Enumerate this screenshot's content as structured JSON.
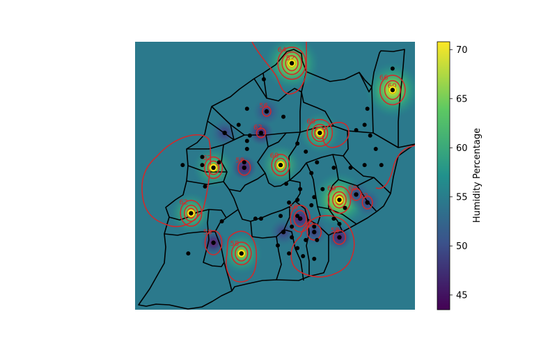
{
  "colorbar": {
    "label": "Humidity Percentage",
    "min": 43.5,
    "max": 70.8,
    "ticks": [
      "45",
      "50",
      "55",
      "60",
      "65",
      "70"
    ],
    "colormap": [
      "#440154",
      "#3b528b",
      "#21918c",
      "#5ec962",
      "#fde725"
    ]
  },
  "map": {
    "background_value": 54.5,
    "contour_color": "#d62728",
    "contour_labels": [
      "64",
      "66",
      "60",
      "62",
      "60",
      "62",
      "60",
      "58",
      "58",
      "62",
      "60",
      "62",
      "58",
      "56",
      "52",
      "58",
      "56",
      "52",
      "60",
      "62",
      "58"
    ],
    "stations": [
      {
        "lon": 0.56,
        "lat": 0.92,
        "value": 70.0
      },
      {
        "lon": 0.92,
        "lat": 0.82,
        "value": 66.0
      },
      {
        "lon": 0.66,
        "lat": 0.66,
        "value": 63.0
      },
      {
        "lon": 0.28,
        "lat": 0.53,
        "value": 61.0
      },
      {
        "lon": 0.52,
        "lat": 0.54,
        "value": 60.0
      },
      {
        "lon": 0.2,
        "lat": 0.36,
        "value": 64.0
      },
      {
        "lon": 0.73,
        "lat": 0.41,
        "value": 66.0
      },
      {
        "lon": 0.38,
        "lat": 0.21,
        "value": 62.0
      },
      {
        "lon": 0.45,
        "lat": 0.66,
        "value": 51.0
      },
      {
        "lon": 0.39,
        "lat": 0.53,
        "value": 51.5
      },
      {
        "lon": 0.59,
        "lat": 0.34,
        "value": 48.5
      },
      {
        "lon": 0.28,
        "lat": 0.25,
        "value": 50.5
      },
      {
        "lon": 0.79,
        "lat": 0.43,
        "value": 52.0
      },
      {
        "lon": 0.83,
        "lat": 0.4,
        "value": 52.5
      },
      {
        "lon": 0.73,
        "lat": 0.27,
        "value": 51.5
      },
      {
        "lon": 0.64,
        "lat": 0.29,
        "value": 53.0
      },
      {
        "lon": 0.47,
        "lat": 0.74,
        "value": 52.5
      },
      {
        "lon": 0.53,
        "lat": 0.29,
        "value": 53.0
      },
      {
        "lon": 0.32,
        "lat": 0.66,
        "value": 54.0
      }
    ],
    "points": [
      [
        0.92,
        0.9
      ],
      [
        0.46,
        0.86
      ],
      [
        0.4,
        0.75
      ],
      [
        0.53,
        0.72
      ],
      [
        0.37,
        0.69
      ],
      [
        0.41,
        0.65
      ],
      [
        0.4,
        0.6
      ],
      [
        0.24,
        0.57
      ],
      [
        0.24,
        0.54
      ],
      [
        0.39,
        0.55
      ],
      [
        0.25,
        0.46
      ],
      [
        0.17,
        0.54
      ],
      [
        0.3,
        0.55
      ],
      [
        0.4,
        0.63
      ],
      [
        0.58,
        0.62
      ],
      [
        0.61,
        0.59
      ],
      [
        0.65,
        0.55
      ],
      [
        0.63,
        0.51
      ],
      [
        0.71,
        0.53
      ],
      [
        0.83,
        0.75
      ],
      [
        0.82,
        0.69
      ],
      [
        0.79,
        0.67
      ],
      [
        0.84,
        0.65
      ],
      [
        0.86,
        0.6
      ],
      [
        0.77,
        0.53
      ],
      [
        0.82,
        0.54
      ],
      [
        0.88,
        0.54
      ],
      [
        0.54,
        0.47
      ],
      [
        0.59,
        0.45
      ],
      [
        0.67,
        0.45
      ],
      [
        0.63,
        0.39
      ],
      [
        0.58,
        0.41
      ],
      [
        0.58,
        0.35
      ],
      [
        0.64,
        0.42
      ],
      [
        0.75,
        0.38
      ],
      [
        0.71,
        0.34
      ],
      [
        0.73,
        0.32
      ],
      [
        0.64,
        0.31
      ],
      [
        0.65,
        0.26
      ],
      [
        0.61,
        0.26
      ],
      [
        0.58,
        0.23
      ],
      [
        0.55,
        0.21
      ],
      [
        0.43,
        0.34
      ],
      [
        0.45,
        0.34
      ],
      [
        0.56,
        0.27
      ],
      [
        0.51,
        0.24
      ],
      [
        0.64,
        0.19
      ],
      [
        0.6,
        0.2
      ],
      [
        0.31,
        0.33
      ],
      [
        0.19,
        0.21
      ],
      [
        0.52,
        0.35
      ],
      [
        0.55,
        0.4
      ],
      [
        0.56,
        0.31
      ]
    ],
    "hotspot_contours": [
      {
        "lon": 0.56,
        "lat": 0.92,
        "rings": [
          [
            0.05,
            0.06
          ],
          [
            0.035,
            0.042
          ],
          [
            0.022,
            0.028
          ]
        ]
      },
      {
        "lon": 0.92,
        "lat": 0.82,
        "rings": [
          [
            0.045,
            0.055
          ],
          [
            0.028,
            0.035
          ]
        ]
      },
      {
        "lon": 0.66,
        "lat": 0.66,
        "rings": [
          [
            0.045,
            0.05
          ],
          [
            0.028,
            0.032
          ],
          [
            0.018,
            0.022
          ]
        ]
      },
      {
        "lon": 0.28,
        "lat": 0.53,
        "rings": [
          [
            0.032,
            0.04
          ],
          [
            0.02,
            0.025
          ]
        ]
      },
      {
        "lon": 0.52,
        "lat": 0.54,
        "rings": [
          [
            0.032,
            0.04
          ],
          [
            0.02,
            0.025
          ]
        ]
      },
      {
        "lon": 0.2,
        "lat": 0.36,
        "rings": [
          [
            0.038,
            0.048
          ],
          [
            0.024,
            0.03
          ],
          [
            0.014,
            0.018
          ]
        ]
      },
      {
        "lon": 0.73,
        "lat": 0.41,
        "rings": [
          [
            0.04,
            0.05
          ],
          [
            0.024,
            0.03
          ],
          [
            0.014,
            0.018
          ]
        ]
      },
      {
        "lon": 0.38,
        "lat": 0.21,
        "rings": [
          [
            0.035,
            0.042
          ],
          [
            0.022,
            0.028
          ]
        ]
      },
      {
        "lon": 0.39,
        "lat": 0.53,
        "rings": [
          [
            0.022,
            0.028
          ]
        ]
      },
      {
        "lon": 0.45,
        "lat": 0.66,
        "rings": [
          [
            0.016,
            0.018
          ]
        ]
      },
      {
        "lon": 0.79,
        "lat": 0.43,
        "rings": [
          [
            0.018,
            0.022
          ]
        ]
      },
      {
        "lon": 0.83,
        "lat": 0.4,
        "rings": [
          [
            0.018,
            0.024
          ]
        ]
      },
      {
        "lon": 0.28,
        "lat": 0.25,
        "rings": [
          [
            0.03,
            0.045
          ]
        ]
      },
      {
        "lon": 0.59,
        "lat": 0.34,
        "rings": [
          [
            0.035,
            0.05
          ],
          [
            0.022,
            0.03
          ]
        ]
      },
      {
        "lon": 0.64,
        "lat": 0.29,
        "rings": [
          [
            0.025,
            0.03
          ]
        ]
      },
      {
        "lon": 0.73,
        "lat": 0.27,
        "rings": [
          [
            0.022,
            0.026
          ]
        ]
      },
      {
        "lon": 0.47,
        "lat": 0.74,
        "rings": [
          [
            0.015,
            0.018
          ]
        ]
      }
    ]
  }
}
